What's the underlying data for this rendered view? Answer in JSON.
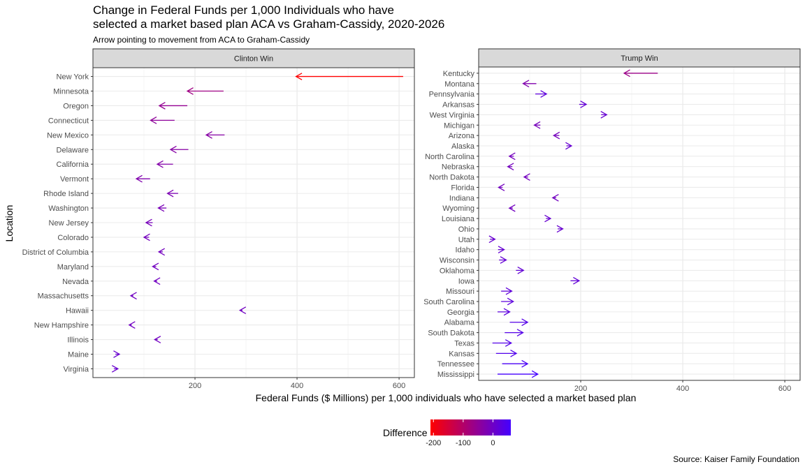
{
  "chart_data": {
    "type": "arrow-dot-plot",
    "title_line1": "Change in Federal Funds per 1,000 Individuals who have",
    "title_line2": "selected a market based plan ACA vs Graham-Cassidy, 2020-2026",
    "subtitle": "Arrow pointing to movement from ACA to Graham-Cassidy",
    "xlabel": "Federal Funds ($ Millions) per 1,000 individuals who have selected a market based plan",
    "ylabel": "Location",
    "caption": "Source: Kaiser Family Foundation",
    "xlim": [
      0,
      630
    ],
    "x_ticks": [
      200,
      400,
      600
    ],
    "legend": {
      "title": "Difference",
      "range": [
        -210,
        60
      ],
      "ticks": [
        -200,
        -100,
        0
      ],
      "low_color": "#FF0000",
      "high_color": "#4400FF"
    },
    "panels": [
      {
        "label": "Clinton Win",
        "rows": [
          {
            "name": "New York",
            "aca": 608,
            "gc": 398
          },
          {
            "name": "Minnesota",
            "aca": 256,
            "gc": 185
          },
          {
            "name": "Oregon",
            "aca": 185,
            "gc": 130
          },
          {
            "name": "Connecticut",
            "aca": 160,
            "gc": 113
          },
          {
            "name": "New Mexico",
            "aca": 258,
            "gc": 222
          },
          {
            "name": "Delaware",
            "aca": 187,
            "gc": 152
          },
          {
            "name": "California",
            "aca": 157,
            "gc": 126
          },
          {
            "name": "Vermont",
            "aca": 112,
            "gc": 85
          },
          {
            "name": "Rhode Island",
            "aca": 167,
            "gc": 146
          },
          {
            "name": "Washington",
            "aca": 144,
            "gc": 128
          },
          {
            "name": "New Jersey",
            "aca": 117,
            "gc": 104
          },
          {
            "name": "Colorado",
            "aca": 110,
            "gc": 100
          },
          {
            "name": "District of Columbia",
            "aca": 137,
            "gc": 129
          },
          {
            "name": "Maryland",
            "aca": 124,
            "gc": 117
          },
          {
            "name": "Nevada",
            "aca": 126,
            "gc": 120
          },
          {
            "name": "Massachusetts",
            "aca": 79,
            "gc": 74
          },
          {
            "name": "Hawaii",
            "aca": 293,
            "gc": 288
          },
          {
            "name": "New Hampshire",
            "aca": 76,
            "gc": 71
          },
          {
            "name": "Illinois",
            "aca": 127,
            "gc": 121
          },
          {
            "name": "Maine",
            "aca": 44,
            "gc": 52
          },
          {
            "name": "Virginia",
            "aca": 41,
            "gc": 49
          }
        ]
      },
      {
        "label": "Trump Win",
        "rows": [
          {
            "name": "Kentucky",
            "aca": 351,
            "gc": 285
          },
          {
            "name": "Montana",
            "aca": 113,
            "gc": 87
          },
          {
            "name": "Pennsylvania",
            "aca": 111,
            "gc": 133
          },
          {
            "name": "Arkansas",
            "aca": 197,
            "gc": 211
          },
          {
            "name": "West Virginia",
            "aca": 240,
            "gc": 251
          },
          {
            "name": "Michigan",
            "aca": 121,
            "gc": 109
          },
          {
            "name": "Arizona",
            "aca": 158,
            "gc": 147
          },
          {
            "name": "Alaska",
            "aca": 172,
            "gc": 182
          },
          {
            "name": "North Carolina",
            "aca": 69,
            "gc": 60
          },
          {
            "name": "Nebraska",
            "aca": 66,
            "gc": 57
          },
          {
            "name": "North Dakota",
            "aca": 97,
            "gc": 89
          },
          {
            "name": "Florida",
            "aca": 47,
            "gc": 39
          },
          {
            "name": "Indiana",
            "aca": 152,
            "gc": 145
          },
          {
            "name": "Wyoming",
            "aca": 67,
            "gc": 60
          },
          {
            "name": "Louisiana",
            "aca": 132,
            "gc": 141
          },
          {
            "name": "Ohio",
            "aca": 155,
            "gc": 165
          },
          {
            "name": "Utah",
            "aca": 22,
            "gc": 32
          },
          {
            "name": "Idaho",
            "aca": 38,
            "gc": 50
          },
          {
            "name": "Wisconsin",
            "aca": 40,
            "gc": 54
          },
          {
            "name": "Oklahoma",
            "aca": 73,
            "gc": 88
          },
          {
            "name": "Iowa",
            "aca": 180,
            "gc": 197
          },
          {
            "name": "Missouri",
            "aca": 44,
            "gc": 65
          },
          {
            "name": "South Carolina",
            "aca": 44,
            "gc": 68
          },
          {
            "name": "Georgia",
            "aca": 37,
            "gc": 61
          },
          {
            "name": "Alabama",
            "aca": 61,
            "gc": 96
          },
          {
            "name": "South Dakota",
            "aca": 51,
            "gc": 87
          },
          {
            "name": "Texas",
            "aca": 27,
            "gc": 64
          },
          {
            "name": "Kansas",
            "aca": 34,
            "gc": 74
          },
          {
            "name": "Tennessee",
            "aca": 46,
            "gc": 96
          },
          {
            "name": "Mississippi",
            "aca": 37,
            "gc": 116
          }
        ]
      }
    ]
  }
}
